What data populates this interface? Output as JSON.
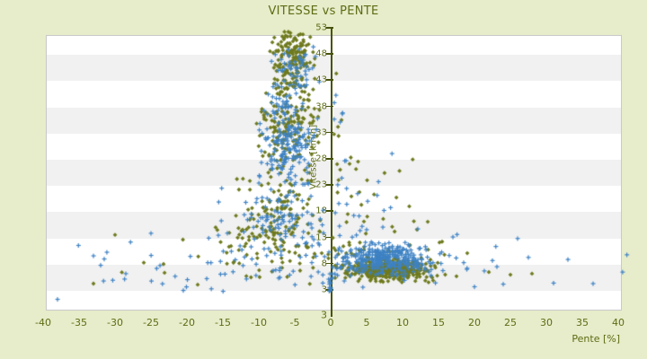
{
  "colors": {
    "page_bg": "#e7ecca",
    "plot_bg": "#ffffff",
    "stripe": "#f1f1f1",
    "plot_border": "#c9c9c9",
    "text": "#5d6c14",
    "axis_line": "#47530e",
    "series_blue": "#3e82c4",
    "series_olive": "#6f7a1e"
  },
  "chart_data": {
    "type": "scatter",
    "title": "VITESSE vs PENTE",
    "xlabel": "Pente [%]",
    "ylabel": "Vitesse [km/h]",
    "xlim": [
      -40,
      40
    ],
    "ylim": [
      3,
      53
    ],
    "x_ticks": [
      -40,
      -35,
      -30,
      -25,
      -20,
      -15,
      -10,
      -5,
      0,
      5,
      10,
      15,
      20,
      25,
      30,
      35,
      40
    ],
    "y_ticks": [
      53,
      48,
      43,
      38,
      33,
      28,
      23,
      18,
      13,
      8,
      3
    ],
    "y_min_edge_label": "3",
    "grid": "horizontal-stripes-every-5-units",
    "legend": "none",
    "point_encoding": "clustered-approximation",
    "seed": 20240917,
    "series": [
      {
        "name": "olive-diamonds",
        "marker": "diamond",
        "color": "#6f7a1e",
        "clusters": [
          {
            "n": 170,
            "x": {
              "mean": -5.2,
              "sd": 1.6,
              "min": -9.5,
              "max": -2.2
            },
            "y": {
              "mean": 47,
              "sd": 3.2,
              "min": 40,
              "max": 52.3
            }
          },
          {
            "n": 150,
            "x": {
              "mean": -6.0,
              "sd": 2.0,
              "min": -11,
              "max": -1.5
            },
            "y": {
              "mean": 34,
              "sd": 4.5,
              "min": 24,
              "max": 45
            }
          },
          {
            "n": 110,
            "x": {
              "mean": -7.0,
              "sd": 3.2,
              "min": -15,
              "max": -1
            },
            "y": {
              "mean": 18.5,
              "sd": 4.0,
              "min": 11,
              "max": 26
            }
          },
          {
            "n": 420,
            "x": {
              "mean": 8.0,
              "sd": 2.9,
              "min": 0.3,
              "max": 17
            },
            "y": {
              "mean": 6.9,
              "sd": 1.2,
              "min": 4.2,
              "max": 10.5
            }
          },
          {
            "n": 80,
            "x": {
              "mean": -5.0,
              "sd": 10.0,
              "min": -30,
              "max": 20
            },
            "y": {
              "mean": 9.5,
              "sd": 2.8,
              "min": 3.5,
              "max": 15.5
            }
          },
          {
            "n": 18,
            "x": {
              "mean": 1.6,
              "sd": 1.1,
              "min": 0.2,
              "max": 4.5
            },
            "y": {
              "uniform": [
                10,
                46
              ]
            }
          },
          {
            "n": 16,
            "x": {
              "mean": 6.0,
              "sd": 3.0,
              "min": 1,
              "max": 13
            },
            "y": {
              "mean": 20,
              "sd": 6.0,
              "min": 11,
              "max": 36
            }
          },
          {
            "n": 25,
            "x": {
              "mean": -10.0,
              "sd": 4.0,
              "min": -22,
              "max": -3
            },
            "y": {
              "mean": 13,
              "sd": 2.0,
              "min": 9,
              "max": 17
            }
          }
        ],
        "outliers": [
          [
            -30,
            13.5
          ],
          [
            -26,
            8.2
          ],
          [
            -18.5,
            4
          ],
          [
            15.5,
            12.2
          ],
          [
            17.5,
            5.6
          ],
          [
            19,
            10
          ],
          [
            22,
            6.4
          ],
          [
            25,
            5.9
          ],
          [
            28,
            6.1
          ],
          [
            -33,
            4.2
          ],
          [
            12,
            14.5
          ],
          [
            13.5,
            16
          ]
        ]
      },
      {
        "name": "blue-crosses",
        "marker": "plus",
        "color": "#3e82c4",
        "clusters": [
          {
            "n": 55,
            "x": {
              "mean": -5.3,
              "sd": 1.5,
              "min": -9,
              "max": -2
            },
            "y": {
              "mean": 45,
              "sd": 3.0,
              "min": 39,
              "max": 51
            }
          },
          {
            "n": 190,
            "x": {
              "mean": -5.8,
              "sd": 1.9,
              "min": -10.5,
              "max": -1.5
            },
            "y": {
              "mean": 31.5,
              "sd": 5.0,
              "min": 20,
              "max": 43
            }
          },
          {
            "n": 95,
            "x": {
              "mean": -7.5,
              "sd": 3.6,
              "min": -16,
              "max": -1
            },
            "y": {
              "mean": 16.5,
              "sd": 3.5,
              "min": 9,
              "max": 24
            }
          },
          {
            "n": 310,
            "x": {
              "mean": 7.6,
              "sd": 3.1,
              "min": 0.3,
              "max": 17.5
            },
            "y": {
              "mean": 8.9,
              "sd": 1.5,
              "min": 5.5,
              "max": 13
            }
          },
          {
            "n": 105,
            "x": {
              "mean": -3.0,
              "sd": 13.0,
              "min": -38,
              "max": 25
            },
            "y": {
              "mean": 8.5,
              "sd": 2.8,
              "min": 2.5,
              "max": 15
            }
          },
          {
            "n": 15,
            "x": {
              "mean": 1.2,
              "sd": 0.9,
              "min": 0.1,
              "max": 3.5
            },
            "y": {
              "uniform": [
                9,
                42
              ]
            }
          },
          {
            "n": 12,
            "x": {
              "mean": 0.0,
              "sd": 0.15,
              "min": -0.3,
              "max": 0.3
            },
            "y": {
              "uniform": [
                2.5,
                6.8
              ]
            }
          },
          {
            "n": 18,
            "x": {
              "mean": 5.0,
              "sd": 2.5,
              "min": 1,
              "max": 11
            },
            "y": {
              "mean": 17,
              "sd": 4.0,
              "min": 11,
              "max": 30
            }
          }
        ],
        "outliers": [
          [
            -38,
            1.2
          ],
          [
            -33,
            9.5
          ],
          [
            -28.5,
            6.1
          ],
          [
            -25,
            13.8
          ],
          [
            -20.5,
            2.9
          ],
          [
            41.2,
            9.7
          ],
          [
            40.6,
            6.4
          ],
          [
            36.5,
            4.2
          ],
          [
            33,
            8.8
          ],
          [
            31,
            4.3
          ],
          [
            27.5,
            9.2
          ],
          [
            24,
            4.1
          ],
          [
            22.5,
            8.6
          ],
          [
            20,
            3.6
          ],
          [
            18.5,
            8.2
          ],
          [
            17,
            13.1
          ],
          [
            -31.5,
            8.9
          ],
          [
            -32,
            7.7
          ],
          [
            26,
            12.8
          ]
        ]
      }
    ]
  }
}
